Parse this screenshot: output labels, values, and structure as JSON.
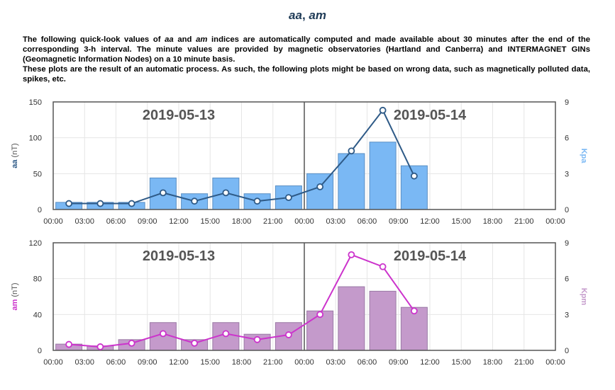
{
  "header": {
    "title_aa": "aa",
    "title_sep": ", ",
    "title_am": "am",
    "desc": {
      "l1_a": "The following quick-look values of ",
      "l1_aa": "aa",
      "l1_b": " and ",
      "l1_am": "am",
      "l1_c": " indices are automatically computed and made available about 30 minutes after the end of the corresponding 3-h interval. The minute values are provided by magnetic observatories (Hartland and Canberra) and INTERMAGNET GINs (Geomagnetic Information Nodes) on a 10 minute basis.",
      "l2": "These plots are the result of an automatic process. As such, the following plots might be based on wrong data, such as magnetically polluted data, spikes, etc."
    }
  },
  "colors": {
    "aa_bar_fill": "#7ab8f4",
    "aa_bar_stroke": "#5a8fc4",
    "aa_line": "#2e5a87",
    "aa_right_title": "#7ab8f4",
    "am_bar_fill": "#c49acb",
    "am_bar_stroke": "#9a7aa5",
    "am_line": "#cc33cc",
    "am_right_title": "#c49acb",
    "grid": "#e6e6e6",
    "frame": "#555555"
  },
  "chart_data": [
    {
      "type": "bar",
      "overlay": "line",
      "dates": [
        "2019-05-13",
        "2019-05-14"
      ],
      "x_ticks": [
        "00:00",
        "03:00",
        "06:00",
        "09:00",
        "12:00",
        "15:00",
        "18:00",
        "21:00",
        "00:00",
        "03:00",
        "06:00",
        "09:00",
        "12:00",
        "15:00",
        "18:00",
        "21:00",
        "00:00"
      ],
      "left_axis": {
        "label_name": "aa",
        "label_unit": " (nT)",
        "ylim": [
          0,
          150
        ],
        "ticks": [
          "0",
          "50",
          "100",
          "150"
        ]
      },
      "right_axis": {
        "label": "Kpa",
        "ylim": [
          0,
          9
        ],
        "ticks": [
          "0",
          "3",
          "6",
          "9"
        ]
      },
      "bars": {
        "axis": "left",
        "hours": [
          1.5,
          4.5,
          7.5,
          10.5,
          13.5,
          16.5,
          19.5,
          22.5,
          25.5,
          28.5,
          31.5,
          34.5
        ],
        "values": [
          10,
          10,
          10,
          44,
          22,
          44,
          22,
          33,
          50,
          78,
          94,
          61
        ]
      },
      "line": {
        "axis": "right",
        "hours": [
          1.5,
          4.5,
          7.5,
          10.5,
          13.5,
          16.5,
          19.5,
          22.5,
          25.5,
          28.5,
          31.5,
          34.5
        ],
        "values": [
          0.5,
          0.5,
          0.5,
          1.4,
          0.7,
          1.4,
          0.7,
          1.0,
          1.9,
          4.9,
          8.3,
          2.8
        ]
      },
      "grid": true
    },
    {
      "type": "bar",
      "overlay": "line",
      "dates": [
        "2019-05-13",
        "2019-05-14"
      ],
      "x_ticks": [
        "00:00",
        "03:00",
        "06:00",
        "09:00",
        "12:00",
        "15:00",
        "18:00",
        "21:00",
        "00:00",
        "03:00",
        "06:00",
        "09:00",
        "12:00",
        "15:00",
        "18:00",
        "21:00",
        "00:00"
      ],
      "left_axis": {
        "label_name": "am",
        "label_unit": " (nT)",
        "ylim": [
          0,
          120
        ],
        "ticks": [
          "0",
          "40",
          "80",
          "120"
        ]
      },
      "right_axis": {
        "label": "Kpm",
        "ylim": [
          0,
          9
        ],
        "ticks": [
          "0",
          "3",
          "6",
          "9"
        ]
      },
      "bars": {
        "axis": "left",
        "hours": [
          1.5,
          4.5,
          7.5,
          10.5,
          13.5,
          16.5,
          19.5,
          22.5,
          25.5,
          28.5,
          31.5,
          34.5
        ],
        "values": [
          7,
          5,
          12,
          31,
          12,
          31,
          18,
          31,
          44,
          71,
          66,
          48
        ]
      },
      "line": {
        "axis": "right",
        "hours": [
          1.5,
          4.5,
          7.5,
          10.5,
          13.5,
          16.5,
          19.5,
          22.5,
          25.5,
          28.5,
          31.5,
          34.5
        ],
        "values": [
          0.5,
          0.3,
          0.6,
          1.4,
          0.6,
          1.4,
          0.9,
          1.3,
          3.0,
          8.0,
          7.0,
          3.3
        ]
      },
      "grid": true
    }
  ]
}
